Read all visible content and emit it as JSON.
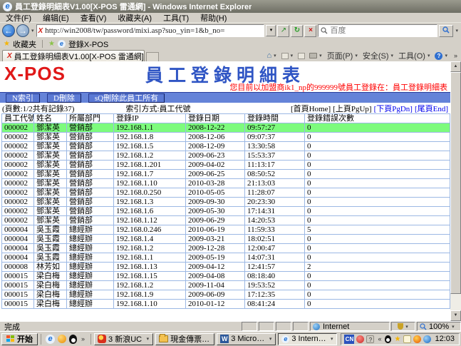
{
  "colors": {
    "toolbar_blue": "#6583d8",
    "action_button_blue": "#5b79d4",
    "highlight_green": "#7dfb7d",
    "table_border_blue": "#9cb8e4",
    "alert_red": "#ff0000",
    "link_blue": "#0000ee",
    "logo_red": "#e01818",
    "title_blue": "#2f55c4"
  },
  "window": {
    "title": "員工登錄明細表V1.00[X-POS 雷通網] - Windows Internet Explorer",
    "menu": [
      "文件(F)",
      "编辑(E)",
      "查看(V)",
      "收藏夹(A)",
      "工具(T)",
      "帮助(H)"
    ],
    "address": {
      "url": "http://win2008/tw/password/mixi.asp?suo_yin=1&b_no=",
      "search_placeholder": "百度"
    },
    "favorites_bar": {
      "favorites_label": "收藏夹",
      "bookmark": "登錄X-POS"
    },
    "tab": "員工登錄明細表V1.00[X-POS 雷通網]",
    "command_bar": {
      "page": "页面(P)",
      "safety": "安全(S)",
      "tools": "工具(O)",
      "help_glyph": "?"
    }
  },
  "page": {
    "logo": "X-POS",
    "title": "員工登錄明細表",
    "login_status": "您目前以加盟商ik1_np的999999號員工登錄在：員工登錄明細表",
    "action_buttons": [
      "N索引",
      "D刪除",
      "sQ刪除此員工所有"
    ],
    "page_info": "(頁數:1/2共有記錄37)",
    "index_mode": "索引方式:員工代號",
    "nav_links": [
      {
        "label": "[首頁Home]",
        "enabled": false
      },
      {
        "label": "[上頁PgUp]",
        "enabled": false
      },
      {
        "label": "[下頁PgDn]",
        "enabled": true
      },
      {
        "label": "[尾頁End]",
        "enabled": true
      }
    ],
    "table": {
      "headers": [
        "員工代號",
        "姓名",
        "所屬部門",
        "登錄IP",
        "登錄日期",
        "登錄時間",
        "登錄錯誤次數"
      ],
      "highlighted_row": 0,
      "rows": [
        [
          "000002",
          "鄧潔英",
          "營銷部",
          "192.168.1.1",
          "2008-12-22",
          "09:57:27",
          "0"
        ],
        [
          "000002",
          "鄧潔英",
          "營銷部",
          "192.168.1.8",
          "2008-12-06",
          "09:07:37",
          "0"
        ],
        [
          "000002",
          "鄧潔英",
          "營銷部",
          "192.168.1.5",
          "2008-12-09",
          "13:30:58",
          "0"
        ],
        [
          "000002",
          "鄧潔英",
          "營銷部",
          "192.168.1.2",
          "2009-06-23",
          "15:53:37",
          "0"
        ],
        [
          "000002",
          "鄧潔英",
          "營銷部",
          "192.168.1.201",
          "2009-04-02",
          "11:13:17",
          "0"
        ],
        [
          "000002",
          "鄧潔英",
          "營銷部",
          "192.168.1.7",
          "2009-06-25",
          "08:50:52",
          "0"
        ],
        [
          "000002",
          "鄧潔英",
          "營銷部",
          "192.168.1.10",
          "2010-03-28",
          "21:13:03",
          "0"
        ],
        [
          "000002",
          "鄧潔英",
          "營銷部",
          "192.168.0.250",
          "2010-05-05",
          "11:28:07",
          "0"
        ],
        [
          "000002",
          "鄧潔英",
          "營銷部",
          "192.168.1.3",
          "2009-09-30",
          "20:23:30",
          "0"
        ],
        [
          "000002",
          "鄧潔英",
          "營銷部",
          "192.168.1.6",
          "2009-05-30",
          "17:14:31",
          "0"
        ],
        [
          "000002",
          "鄧潔英",
          "營銷部",
          "192.168.1.12",
          "2009-06-29",
          "14:20:53",
          "0"
        ],
        [
          "000004",
          "吳玉霞",
          "總經辦",
          "192.168.0.246",
          "2010-06-19",
          "11:59:33",
          "5"
        ],
        [
          "000004",
          "吳玉霞",
          "總經辦",
          "192.168.1.4",
          "2009-03-21",
          "18:02:51",
          "0"
        ],
        [
          "000004",
          "吳玉霞",
          "總經辦",
          "192.168.1.2",
          "2009-12-28",
          "12:00:47",
          "0"
        ],
        [
          "000004",
          "吳玉霞",
          "總經辦",
          "192.168.1.1",
          "2009-05-19",
          "14:07:31",
          "0"
        ],
        [
          "000008",
          "林芳如",
          "總經辦",
          "192.168.1.13",
          "2009-04-12",
          "12:41:57",
          "2"
        ],
        [
          "000015",
          "梁白梅",
          "總經辦",
          "192.168.1.15",
          "2009-04-08",
          "08:18:40",
          "0"
        ],
        [
          "000015",
          "梁白梅",
          "總經辦",
          "192.168.1.2",
          "2009-11-04",
          "19:53:52",
          "0"
        ],
        [
          "000015",
          "梁白梅",
          "總經辦",
          "192.168.1.9",
          "2009-06-09",
          "17:12:35",
          "0"
        ],
        [
          "000015",
          "梁白梅",
          "總經辦",
          "192.168.1.10",
          "2010-01-12",
          "08:41:24",
          "0"
        ]
      ]
    }
  },
  "status_bar": {
    "text": "完成",
    "zone": "Internet",
    "zoom": "100%"
  },
  "taskbar": {
    "start": "开始",
    "tasks": [
      {
        "icon": "sina-uc-icon",
        "label": "3 新浪UC",
        "dropdown": true,
        "active": false
      },
      {
        "icon": "folder-icon",
        "label": "現金傳票登錄",
        "dropdown": false,
        "active": false
      },
      {
        "icon": "word-icon",
        "label": "3 Microsoft Off...",
        "dropdown": true,
        "active": false
      },
      {
        "icon": "ie-icon",
        "label": "3 Internet Expl...",
        "dropdown": true,
        "active": true
      }
    ],
    "tray_language": "CN",
    "clock": "12:03"
  }
}
